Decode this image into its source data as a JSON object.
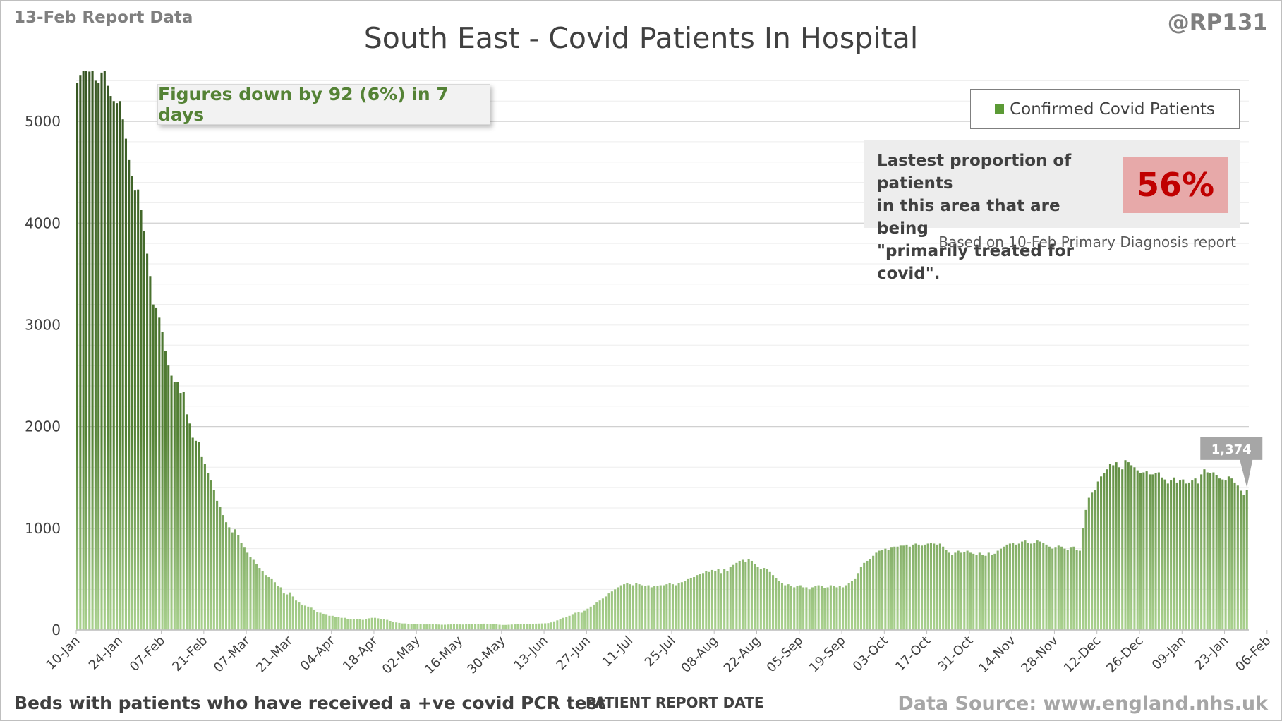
{
  "report_label": "13-Feb Report Data",
  "handle": "@RP131",
  "callout": "Figures down by 92 (6%) in 7 days",
  "proportion": {
    "text_lines": [
      "Lastest proportion of patients",
      "in this area that are being",
      "\"primarily treated for covid\"."
    ],
    "value": "56%",
    "note": "Based on 10-Feb Primary Diagnosis report"
  },
  "footer_left": "Beds with patients who have received a +ve covid PCR test",
  "footer_right": "Data Source: www.england.nhs.uk",
  "colors": {
    "bar_dark": "#375623",
    "bar_light": "#a9d18e",
    "gridline": "#d9d9d9",
    "callout_text": "#548235",
    "percent_text": "#c00000",
    "percent_box": "#e7a9a9"
  },
  "chart_data": {
    "type": "bar",
    "title": "South East - Covid Patients In Hospital",
    "xlabel": "PATIENT REPORT DATE",
    "ylabel": "",
    "ylim": [
      0,
      5500
    ],
    "yticks": [
      0,
      1000,
      2000,
      3000,
      4000,
      5000
    ],
    "grid": true,
    "legend": "top-right",
    "series_name": "Confirmed Covid Patients",
    "first_date": "10-Jan",
    "tick_labels": [
      "10-Jan",
      "24-Jan",
      "07-Feb",
      "21-Feb",
      "07-Mar",
      "21-Mar",
      "04-Apr",
      "18-Apr",
      "02-May",
      "16-May",
      "30-May",
      "13-Jun",
      "27-Jun",
      "11-Jul",
      "25-Jul",
      "08-Aug",
      "22-Aug",
      "05-Sep",
      "19-Sep",
      "03-Oct",
      "17-Oct",
      "31-Oct",
      "14-Nov",
      "28-Nov",
      "12-Dec",
      "26-Dec",
      "09-Jan",
      "23-Jan",
      "06-Feb"
    ],
    "last_value_label": "1,374",
    "values": [
      5380,
      5450,
      5500,
      5500,
      5490,
      5500,
      5400,
      5380,
      5480,
      5500,
      5350,
      5250,
      5200,
      5180,
      5200,
      5020,
      4830,
      4620,
      4460,
      4320,
      4330,
      4130,
      3920,
      3700,
      3480,
      3200,
      3170,
      3070,
      2930,
      2740,
      2600,
      2500,
      2440,
      2440,
      2330,
      2340,
      2120,
      2030,
      1890,
      1860,
      1850,
      1700,
      1630,
      1540,
      1470,
      1380,
      1270,
      1210,
      1130,
      1060,
      1010,
      960,
      990,
      930,
      860,
      810,
      760,
      720,
      690,
      650,
      610,
      580,
      540,
      520,
      500,
      470,
      430,
      420,
      360,
      350,
      370,
      330,
      290,
      270,
      250,
      240,
      230,
      220,
      200,
      180,
      170,
      160,
      150,
      140,
      140,
      130,
      130,
      120,
      120,
      110,
      110,
      110,
      105,
      105,
      100,
      110,
      115,
      120,
      120,
      115,
      110,
      105,
      100,
      90,
      80,
      75,
      70,
      65,
      65,
      60,
      60,
      60,
      58,
      57,
      55,
      55,
      56,
      57,
      55,
      54,
      52,
      52,
      54,
      55,
      56,
      55,
      55,
      54,
      56,
      58,
      57,
      58,
      60,
      62,
      63,
      62,
      60,
      58,
      56,
      52,
      50,
      50,
      52,
      54,
      55,
      56,
      57,
      58,
      60,
      61,
      62,
      63,
      64,
      65,
      66,
      68,
      75,
      85,
      95,
      105,
      120,
      130,
      140,
      150,
      170,
      180,
      170,
      190,
      210,
      230,
      250,
      270,
      290,
      310,
      330,
      360,
      380,
      400,
      420,
      440,
      450,
      460,
      450,
      440,
      460,
      450,
      440,
      430,
      440,
      420,
      430,
      430,
      440,
      440,
      450,
      460,
      450,
      440,
      460,
      470,
      480,
      500,
      510,
      520,
      540,
      550,
      560,
      580,
      570,
      590,
      580,
      600,
      560,
      600,
      580,
      620,
      640,
      660,
      680,
      690,
      670,
      700,
      680,
      650,
      620,
      600,
      610,
      600,
      570,
      540,
      510,
      480,
      460,
      440,
      450,
      430,
      420,
      430,
      440,
      420,
      420,
      400,
      420,
      430,
      440,
      430,
      410,
      420,
      440,
      430,
      420,
      430,
      420,
      440,
      460,
      480,
      500,
      560,
      620,
      660,
      680,
      700,
      730,
      760,
      780,
      790,
      800,
      790,
      810,
      820,
      820,
      830,
      830,
      840,
      820,
      840,
      850,
      840,
      830,
      840,
      850,
      860,
      850,
      840,
      850,
      820,
      790,
      760,
      740,
      760,
      780,
      760,
      770,
      780,
      760,
      750,
      740,
      760,
      740,
      730,
      760,
      740,
      750,
      780,
      800,
      820,
      840,
      850,
      860,
      840,
      850,
      870,
      880,
      860,
      850,
      860,
      880,
      870,
      860,
      840,
      820,
      800,
      810,
      830,
      820,
      800,
      790,
      810,
      820,
      790,
      780,
      1000,
      1180,
      1300,
      1350,
      1380,
      1460,
      1510,
      1540,
      1580,
      1630,
      1620,
      1650,
      1600,
      1580,
      1670,
      1650,
      1620,
      1600,
      1570,
      1540,
      1550,
      1560,
      1530,
      1530,
      1540,
      1550,
      1500,
      1480,
      1440,
      1470,
      1500,
      1450,
      1470,
      1480,
      1440,
      1450,
      1470,
      1490,
      1440,
      1530,
      1580,
      1550,
      1540,
      1550,
      1520,
      1490,
      1480,
      1470,
      1510,
      1490,
      1450,
      1420,
      1370,
      1330,
      1374
    ]
  }
}
